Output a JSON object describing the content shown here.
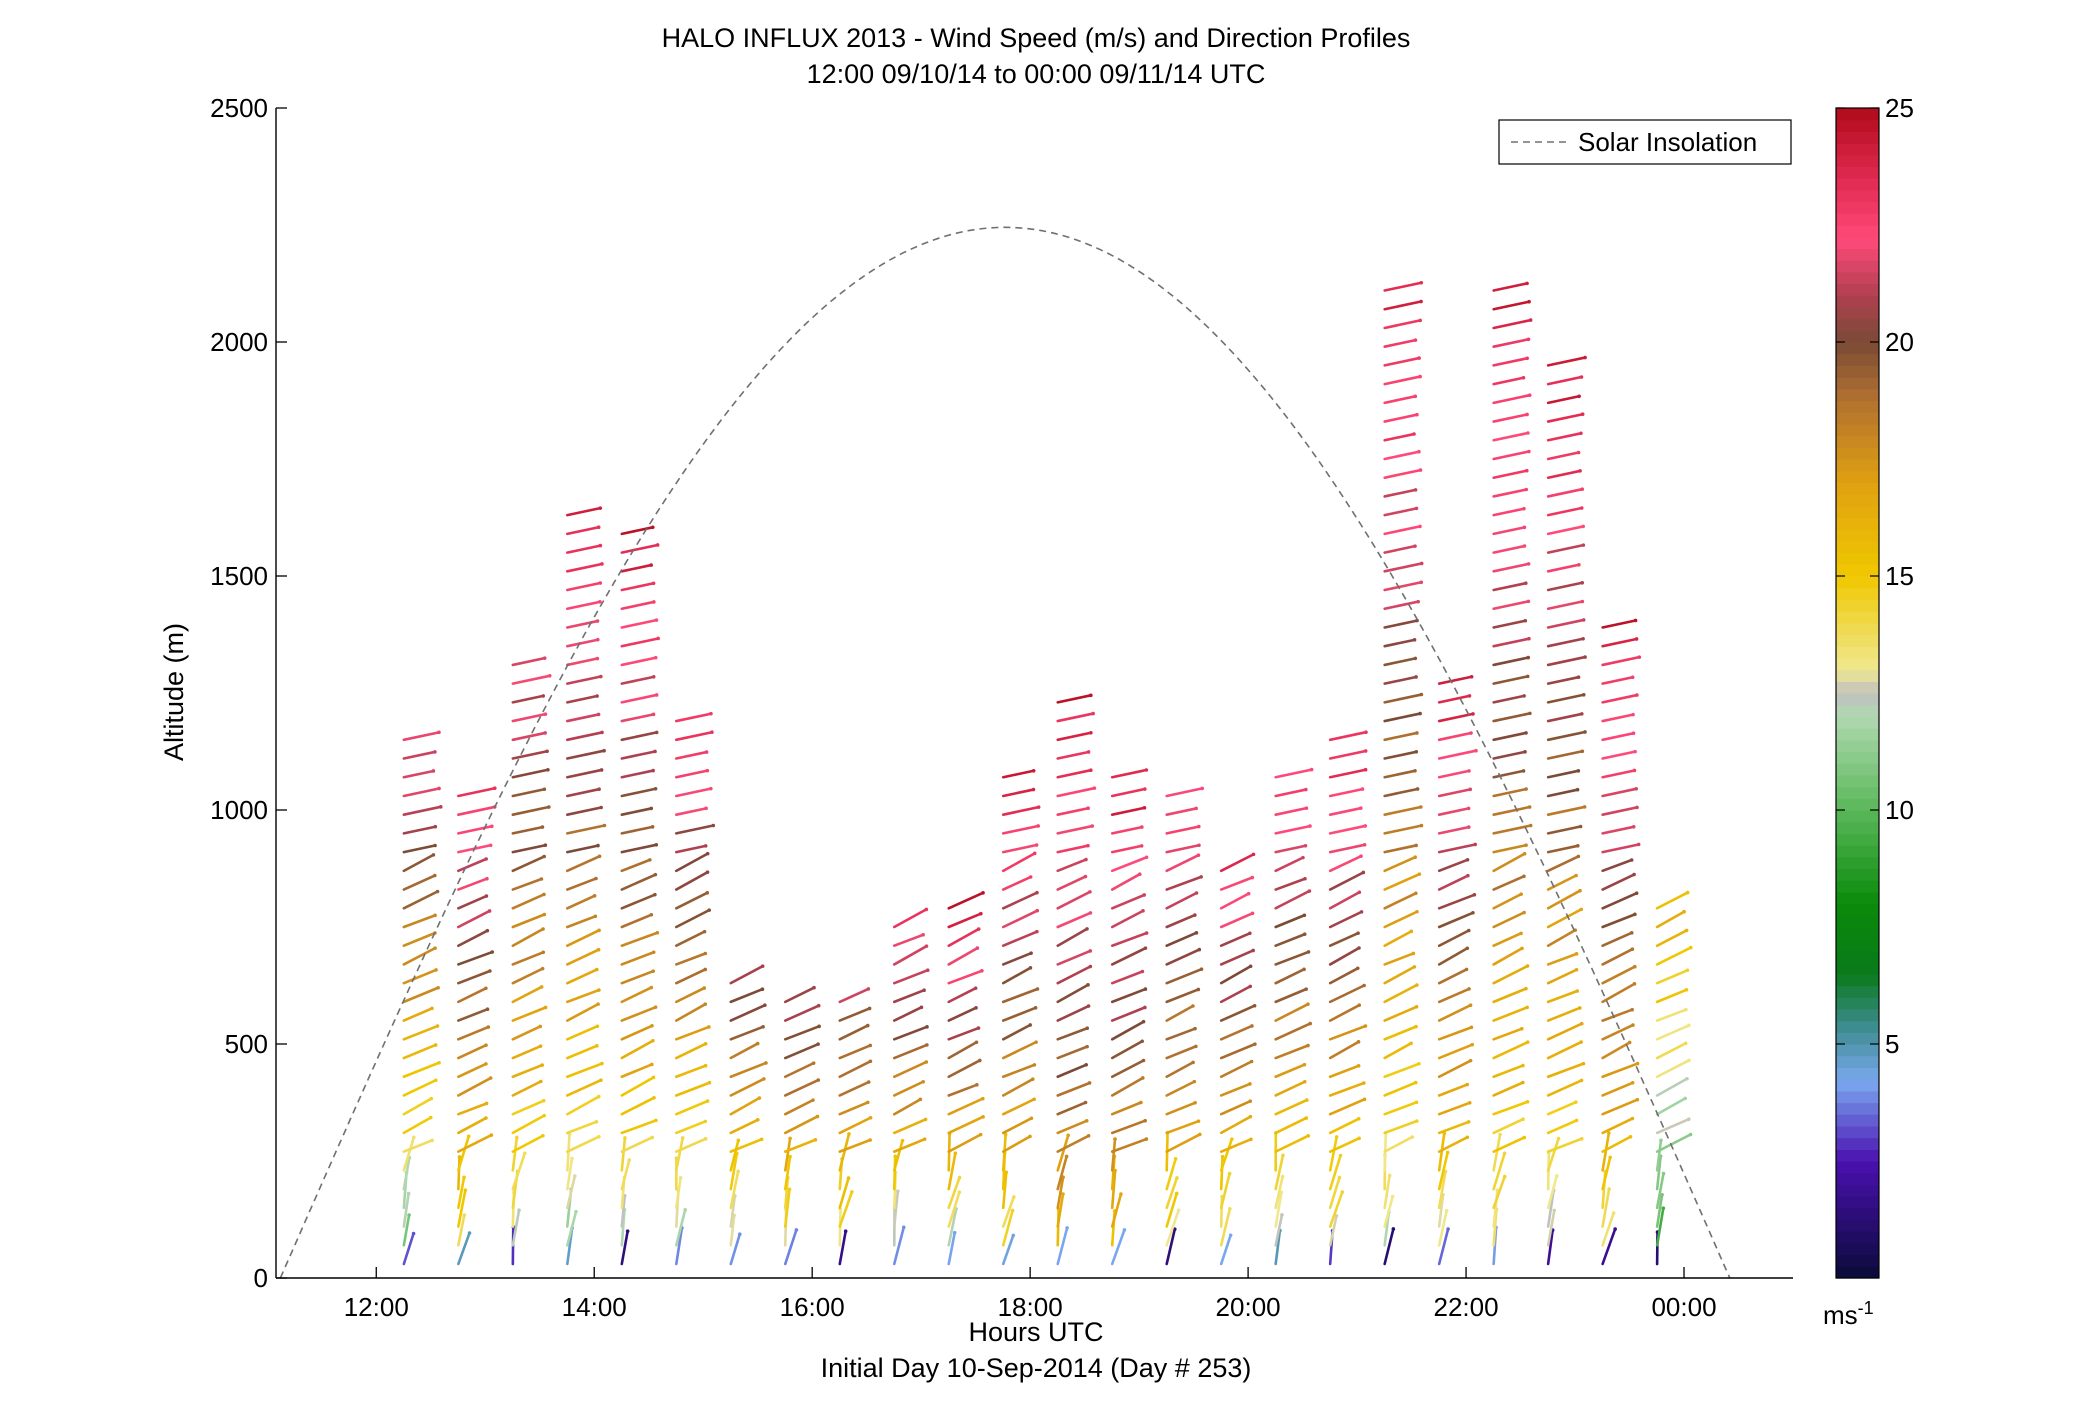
{
  "chart_data": {
    "type": "wind-barb-profile",
    "title": "HALO INFLUX 2013 - Wind Speed (m/s) and Direction Profiles",
    "subtitle": "12:00 09/10/14 to 00:00 09/11/14  UTC",
    "xlabel": "Hours UTC",
    "xlabel2": "Initial Day 10-Sep-2014 (Day # 253)",
    "ylabel": "Altitude (m)",
    "xlim": [
      11.08,
      25.0
    ],
    "ylim": [
      0,
      2500
    ],
    "xticks": [
      {
        "v": 12,
        "label": "12:00"
      },
      {
        "v": 14,
        "label": "14:00"
      },
      {
        "v": 16,
        "label": "16:00"
      },
      {
        "v": 18,
        "label": "18:00"
      },
      {
        "v": 20,
        "label": "20:00"
      },
      {
        "v": 22,
        "label": "22:00"
      },
      {
        "v": 24,
        "label": "00:00"
      }
    ],
    "yticks": [
      {
        "v": 0,
        "label": "0"
      },
      {
        "v": 500,
        "label": "500"
      },
      {
        "v": 1000,
        "label": "1000"
      },
      {
        "v": 1500,
        "label": "1500"
      },
      {
        "v": 2000,
        "label": "2000"
      },
      {
        "v": 2500,
        "label": "2500"
      }
    ],
    "legend": {
      "label": "Solar Insolation",
      "placement": "top-right",
      "style": "dashed",
      "color": "#707070"
    },
    "colorbar": {
      "range": [
        0,
        25
      ],
      "ticks": [
        {
          "v": 5,
          "label": "5"
        },
        {
          "v": 10,
          "label": "10"
        },
        {
          "v": 15,
          "label": "15"
        },
        {
          "v": 20,
          "label": "20"
        },
        {
          "v": 25,
          "label": "25"
        }
      ],
      "unit_base": "ms",
      "unit_exp": "-1",
      "stops": [
        {
          "v": 0,
          "color": "#0a0a38"
        },
        {
          "v": 2.5,
          "color": "#4a10b0"
        },
        {
          "v": 4.2,
          "color": "#7aa8f0"
        },
        {
          "v": 5.4,
          "color": "#3c8c8c"
        },
        {
          "v": 6.5,
          "color": "#0a7a1a"
        },
        {
          "v": 8.0,
          "color": "#0a8a0a"
        },
        {
          "v": 10.0,
          "color": "#5ab85a"
        },
        {
          "v": 12.0,
          "color": "#b0d8b0"
        },
        {
          "v": 12.5,
          "color": "#c0c0c0"
        },
        {
          "v": 13.0,
          "color": "#f0e890"
        },
        {
          "v": 15.0,
          "color": "#f0c800"
        },
        {
          "v": 17.0,
          "color": "#e0a010"
        },
        {
          "v": 18.8,
          "color": "#b07030"
        },
        {
          "v": 20.0,
          "color": "#7a4a36"
        },
        {
          "v": 21.0,
          "color": "#b04050"
        },
        {
          "v": 22.2,
          "color": "#ff4a7a"
        },
        {
          "v": 23.5,
          "color": "#e02a50"
        },
        {
          "v": 25.0,
          "color": "#b00a1a"
        }
      ]
    },
    "insolation": {
      "start": 11.12,
      "end": 24.42,
      "peak_altitude": 2245
    },
    "profiles": [
      {
        "t": 12.4,
        "top": 1150,
        "speed_low": 9,
        "speed_high": 22
      },
      {
        "t": 12.9,
        "top": 1040,
        "speed_low": 12,
        "speed_high": 23
      },
      {
        "t": 13.4,
        "top": 1320,
        "speed_low": 11,
        "speed_high": 22
      },
      {
        "t": 13.9,
        "top": 1650,
        "speed_low": 10,
        "speed_high": 24
      },
      {
        "t": 14.4,
        "top": 1610,
        "speed_low": 11,
        "speed_high": 24
      },
      {
        "t": 14.9,
        "top": 1210,
        "speed_low": 10,
        "speed_high": 23
      },
      {
        "t": 15.4,
        "top": 660,
        "speed_low": 10,
        "speed_high": 23
      },
      {
        "t": 15.9,
        "top": 620,
        "speed_low": 11,
        "speed_high": 23
      },
      {
        "t": 16.4,
        "top": 620,
        "speed_low": 11,
        "speed_high": 23
      },
      {
        "t": 16.9,
        "top": 750,
        "speed_low": 10,
        "speed_high": 23
      },
      {
        "t": 17.4,
        "top": 790,
        "speed_low": 10,
        "speed_high": 24
      },
      {
        "t": 17.9,
        "top": 1090,
        "speed_low": 12,
        "speed_high": 24
      },
      {
        "t": 18.4,
        "top": 1250,
        "speed_low": 15,
        "speed_high": 24
      },
      {
        "t": 18.9,
        "top": 1090,
        "speed_low": 14,
        "speed_high": 24
      },
      {
        "t": 19.4,
        "top": 1050,
        "speed_low": 12,
        "speed_high": 23
      },
      {
        "t": 19.9,
        "top": 870,
        "speed_low": 11,
        "speed_high": 23
      },
      {
        "t": 20.4,
        "top": 1090,
        "speed_low": 11,
        "speed_high": 23
      },
      {
        "t": 20.9,
        "top": 1180,
        "speed_low": 11,
        "speed_high": 24
      },
      {
        "t": 21.4,
        "top": 2120,
        "speed_low": 11,
        "speed_high": 24
      },
      {
        "t": 21.9,
        "top": 1280,
        "speed_low": 11,
        "speed_high": 24
      },
      {
        "t": 22.4,
        "top": 2120,
        "speed_low": 12,
        "speed_high": 24
      },
      {
        "t": 22.9,
        "top": 1960,
        "speed_low": 11,
        "speed_high": 24
      },
      {
        "t": 23.4,
        "top": 1410,
        "speed_low": 12,
        "speed_high": 24
      },
      {
        "t": 23.9,
        "top": 790,
        "speed_low": 8,
        "speed_high": 16
      }
    ]
  }
}
